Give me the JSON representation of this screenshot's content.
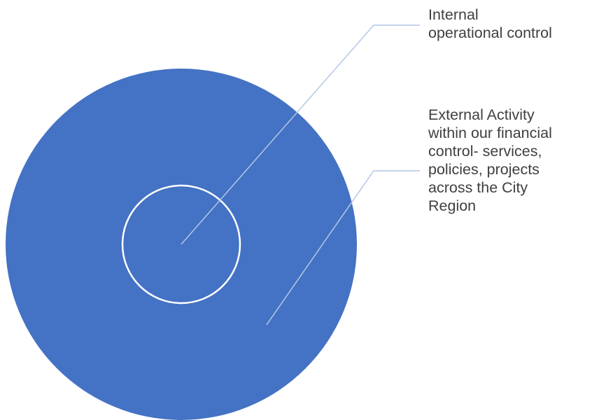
{
  "diagram": {
    "type": "nested-circles",
    "colors": {
      "outer_fill": "#4472C4",
      "inner_stroke": "#FFFFFF",
      "leader_line": "#B4C7E7",
      "label_text": "#404040"
    },
    "inner": {
      "label": "Internal\noperational control"
    },
    "outer": {
      "label": "External Activity\nwithin our financial\ncontrol- services,\npolicies, projects\nacross the City\nRegion"
    }
  }
}
